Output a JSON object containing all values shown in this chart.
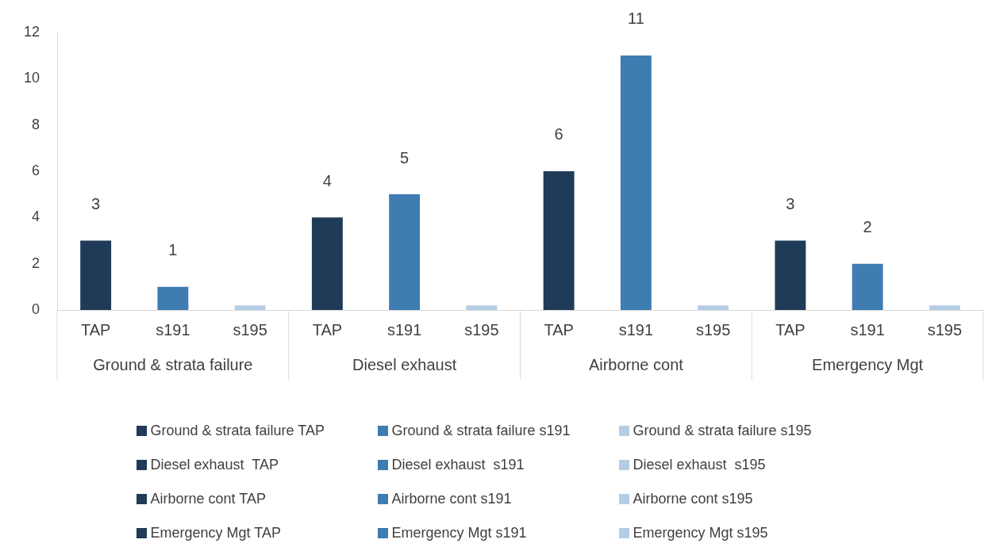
{
  "chart_data": {
    "type": "bar",
    "categories": [
      "TAP",
      "s191",
      "s195",
      "TAP",
      "s191",
      "s195",
      "TAP",
      "s191",
      "s195",
      "TAP",
      "s191",
      "s195"
    ],
    "annotations": [
      "Ground & strata failure",
      "Diesel exhaust",
      "Airborne cont",
      "Emergency Mgt"
    ],
    "ylim": [
      0,
      12
    ],
    "yticks": [
      0,
      2,
      4,
      6,
      8,
      10,
      12
    ],
    "grid": false,
    "legend": "bottom",
    "series": [
      {
        "name": "Ground & strata failure TAP",
        "color": "#1f3b57",
        "values": [
          3,
          null,
          null,
          null,
          null,
          null,
          null,
          null,
          null,
          null,
          null,
          null
        ],
        "value_labels": [
          "3",
          null,
          null,
          null,
          null,
          null,
          null,
          null,
          null,
          null,
          null,
          null
        ]
      },
      {
        "name": "Ground & strata failure s191",
        "color": "#3e7cb1",
        "values": [
          null,
          1,
          null,
          null,
          null,
          null,
          null,
          null,
          null,
          null,
          null,
          null
        ],
        "value_labels": [
          null,
          "1",
          null,
          null,
          null,
          null,
          null,
          null,
          null,
          null,
          null,
          null
        ]
      },
      {
        "name": "Ground & strata failure s195",
        "color": "#b4cde4",
        "values": [
          null,
          null,
          0.2,
          null,
          null,
          null,
          null,
          null,
          null,
          null,
          null,
          null
        ]
      },
      {
        "name": "Diesel exhaust  TAP",
        "color": "#1f3b57",
        "values": [
          null,
          null,
          null,
          4,
          null,
          null,
          null,
          null,
          null,
          null,
          null,
          null
        ],
        "value_labels": [
          null,
          null,
          null,
          "4",
          null,
          null,
          null,
          null,
          null,
          null,
          null,
          null
        ]
      },
      {
        "name": "Diesel exhaust  s191",
        "color": "#3e7cb1",
        "values": [
          null,
          null,
          null,
          null,
          5,
          null,
          null,
          null,
          null,
          null,
          null,
          null
        ],
        "value_labels": [
          null,
          null,
          null,
          null,
          "5",
          null,
          null,
          null,
          null,
          null,
          null,
          null
        ]
      },
      {
        "name": "Diesel exhaust  s195",
        "color": "#b4cde4",
        "values": [
          null,
          null,
          null,
          null,
          null,
          0.2,
          null,
          null,
          null,
          null,
          null,
          null
        ]
      },
      {
        "name": "Airborne cont TAP",
        "color": "#1f3b57",
        "values": [
          null,
          null,
          null,
          null,
          null,
          null,
          6,
          null,
          null,
          null,
          null,
          null
        ],
        "value_labels": [
          null,
          null,
          null,
          null,
          null,
          null,
          "6",
          null,
          null,
          null,
          null,
          null
        ]
      },
      {
        "name": "Airborne cont s191",
        "color": "#3e7cb1",
        "values": [
          null,
          null,
          null,
          null,
          null,
          null,
          null,
          11,
          null,
          null,
          null,
          null
        ],
        "value_labels": [
          null,
          null,
          null,
          null,
          null,
          null,
          null,
          "11",
          null,
          null,
          null,
          null
        ]
      },
      {
        "name": "Airborne cont s195",
        "color": "#b4cde4",
        "values": [
          null,
          null,
          null,
          null,
          null,
          null,
          null,
          null,
          0.2,
          null,
          null,
          null
        ]
      },
      {
        "name": "Emergency Mgt TAP",
        "color": "#1f3b57",
        "values": [
          null,
          null,
          null,
          null,
          null,
          null,
          null,
          null,
          null,
          3,
          null,
          null
        ],
        "value_labels": [
          null,
          null,
          null,
          null,
          null,
          null,
          null,
          null,
          null,
          "3",
          null,
          null
        ]
      },
      {
        "name": "Emergency Mgt s191",
        "color": "#3e7cb1",
        "values": [
          null,
          null,
          null,
          null,
          null,
          null,
          null,
          null,
          null,
          null,
          2,
          null
        ],
        "value_labels": [
          null,
          null,
          null,
          null,
          null,
          null,
          null,
          null,
          null,
          null,
          "2",
          null
        ]
      },
      {
        "name": "Emergency Mgt s195",
        "color": "#b4cde4",
        "values": [
          null,
          null,
          null,
          null,
          null,
          null,
          null,
          null,
          null,
          null,
          null,
          0.2
        ]
      }
    ]
  }
}
